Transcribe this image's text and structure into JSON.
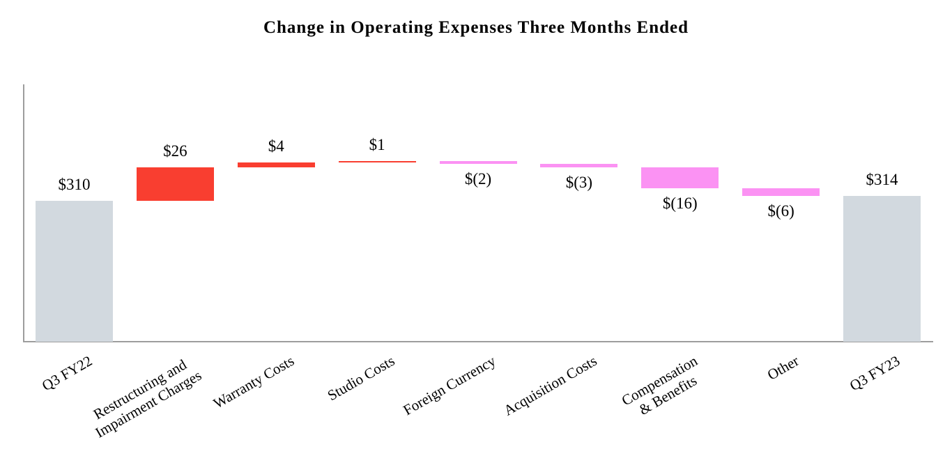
{
  "chart_data": {
    "type": "bar",
    "subtype": "waterfall",
    "title": "Change in Operating Expenses Three Months Ended",
    "categories": [
      "Q3 FY22",
      "Restructuring and\nImpairment Charges",
      "Warranty Costs",
      "Studio Costs",
      "Foreign Currency",
      "Acquisition Costs",
      "Compensation\n& Benefits",
      "Other",
      "Q3 FY23"
    ],
    "values": [
      310,
      26,
      4,
      1,
      -2,
      -3,
      -16,
      -6,
      314
    ],
    "data_labels": [
      "$310",
      "$26",
      "$4",
      "$1",
      "$(2)",
      "$(3)",
      "$(16)",
      "$(6)",
      "$314"
    ],
    "bar_types": [
      "total",
      "increase",
      "increase",
      "increase",
      "decrease",
      "decrease",
      "decrease",
      "decrease",
      "total"
    ],
    "label_positions": [
      "above",
      "above",
      "above",
      "above",
      "below",
      "below",
      "below",
      "below",
      "above"
    ],
    "ylim": [
      200,
      400
    ],
    "grid": false,
    "legend": false,
    "xlabel": "",
    "ylabel": "",
    "colors": {
      "total": "#D2D9DF",
      "increase": "#F93E30",
      "decrease": "#FB92F3",
      "axis": "#9D9D9D",
      "text": "#000000"
    }
  }
}
